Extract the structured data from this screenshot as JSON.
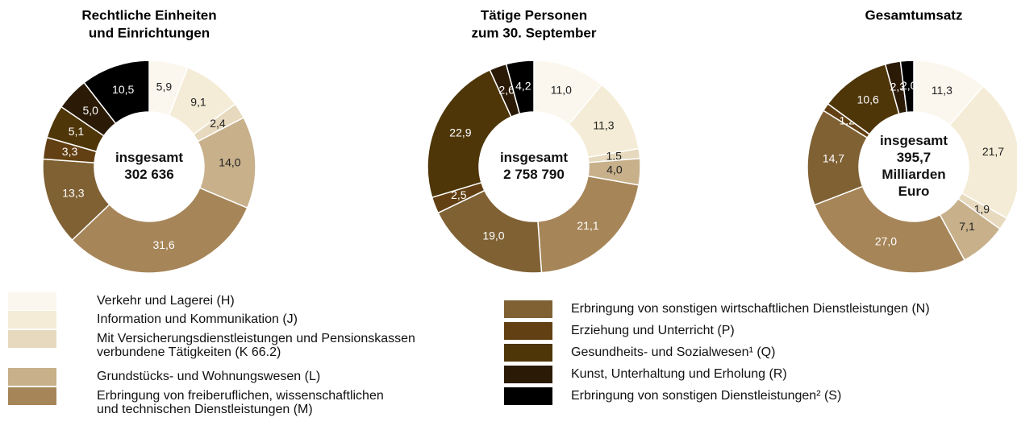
{
  "chart_data": [
    {
      "type": "pie",
      "title": [
        "Rechtliche Einheiten",
        "und Einrichtungen"
      ],
      "center_label": [
        "insgesamt",
        "302 636"
      ],
      "values": [
        5.9,
        9.1,
        2.4,
        14.0,
        31.6,
        13.3,
        3.3,
        5.1,
        5.0,
        10.5
      ],
      "value_labels": [
        "5,9",
        "9,1",
        "2,4",
        "14,0",
        "31,6",
        "13,3",
        "3,3",
        "5,1",
        "5,0",
        "10,5"
      ]
    },
    {
      "type": "pie",
      "title": [
        "Tätige Personen",
        "zum 30. September"
      ],
      "center_label": [
        "insgesamt",
        "2 758 790"
      ],
      "values": [
        11.0,
        11.3,
        1.5,
        4.0,
        21.1,
        19.0,
        2.5,
        22.9,
        2.6,
        4.2
      ],
      "value_labels": [
        "11,0",
        "11,3",
        "1,5",
        "4,0",
        "21,1",
        "19,0",
        "2,5",
        "22,9",
        "2,6",
        "4,2"
      ]
    },
    {
      "type": "pie",
      "title": [
        "Gesamtumsatz"
      ],
      "center_label": [
        "insgesamt",
        "395,7",
        "Milliarden",
        "Euro"
      ],
      "values": [
        11.3,
        21.7,
        1.9,
        7.1,
        27.0,
        14.7,
        1.2,
        10.6,
        2.3,
        2.0
      ],
      "value_labels": [
        "11,3",
        "21,7",
        "1,9",
        "7,1",
        "27,0",
        "14,7",
        "1,2",
        "10,6",
        "2,3",
        "2,0"
      ]
    }
  ],
  "legend": {
    "labels": [
      [
        "Verkehr und Lagerei (H)"
      ],
      [
        "Information und Kommunikation (J)"
      ],
      [
        "Mit Versicherungsdienstleistungen und Pensionskassen",
        "verbundene Tätigkeiten (K 66.2)"
      ],
      [
        "Grundstücks- und Wohnungswesen (L)"
      ],
      [
        "Erbringung von freiberuflichen, wissenschaftlichen",
        "und technischen Dienstleistungen (M)"
      ],
      [
        "Erbringung von sonstigen wirtschaftlichen Dienstleistungen (N)"
      ],
      [
        "Erziehung und Unterricht (P)"
      ],
      [
        "Gesundheits- und Sozialwesen¹ (Q)"
      ],
      [
        "Kunst, Unterhaltung und Erholung (R)"
      ],
      [
        "Erbringung von sonstigen Dienstleistungen² (S)"
      ]
    ],
    "colors": [
      "#fbf7ee",
      "#f4ecd6",
      "#e6d9bd",
      "#c7b08a",
      "#a68558",
      "#7f6134",
      "#634013",
      "#4e3609",
      "#2b1a06",
      "#000000"
    ]
  }
}
